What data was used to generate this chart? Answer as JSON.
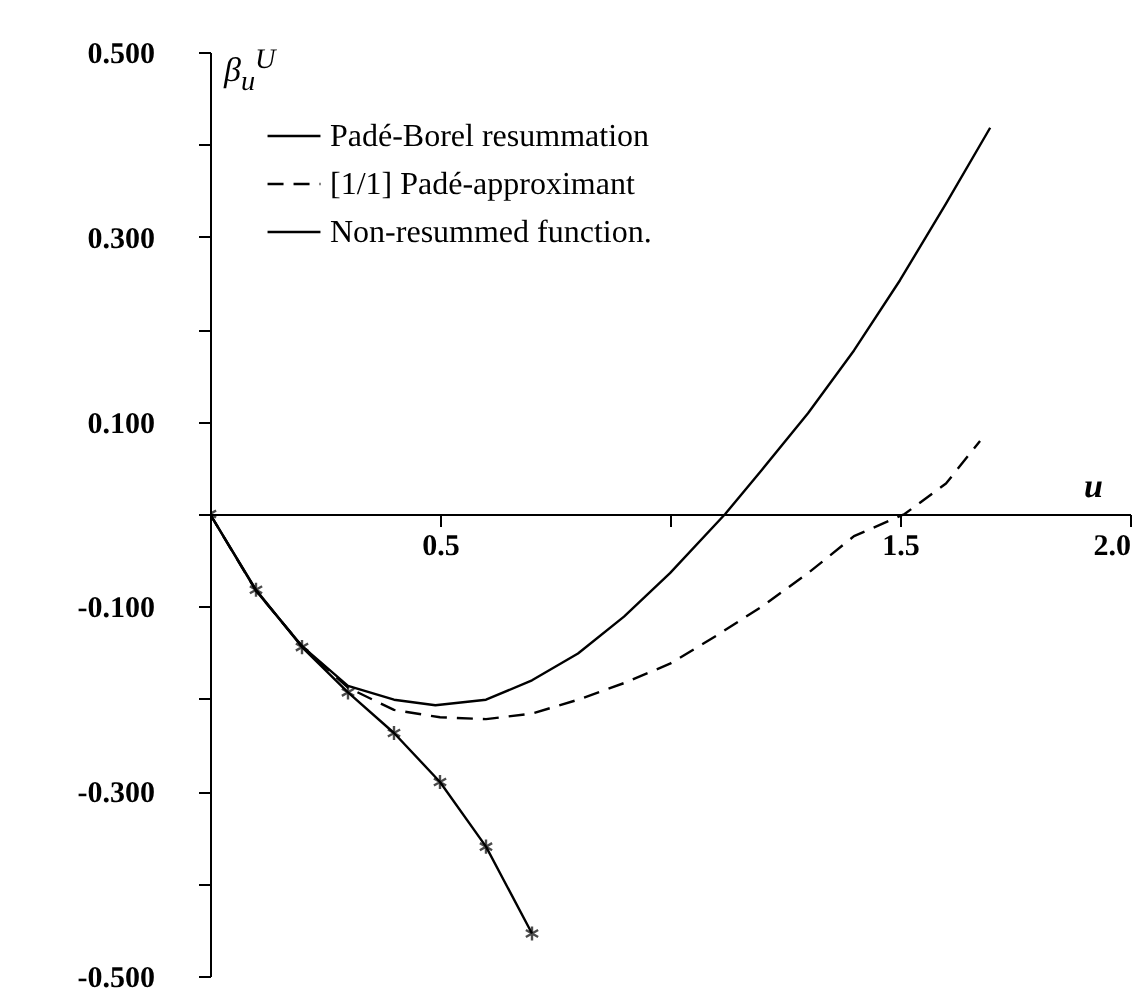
{
  "chart_data": {
    "type": "line",
    "xlabel": "u",
    "ylabel": "β$_{u}$$^{U}$",
    "xlim": [
      0,
      2.0
    ],
    "ylim": [
      -0.5,
      0.5
    ],
    "xticks": [
      {
        "value": 0,
        "label": null
      },
      {
        "value": 0.5,
        "label": "0.5"
      },
      {
        "value": 1.0,
        "label": null
      },
      {
        "value": 1.5,
        "label": "1.5"
      },
      {
        "value": 2.0,
        "label": "2.0"
      }
    ],
    "yticks": [
      {
        "value": 0.5,
        "label": "0.500"
      },
      {
        "value": 0.4,
        "label": null
      },
      {
        "value": 0.3,
        "label": "0.300"
      },
      {
        "value": 0.2,
        "label": null
      },
      {
        "value": 0.1,
        "label": "0.100"
      },
      {
        "value": 0,
        "label": null
      },
      {
        "value": -0.1,
        "label": "-0.100"
      },
      {
        "value": -0.2,
        "label": null
      },
      {
        "value": -0.3,
        "label": "-0.300"
      },
      {
        "value": -0.4,
        "label": null
      },
      {
        "value": -0.5,
        "label": "-0.500"
      }
    ],
    "grid": false,
    "legend": "top left",
    "series": [
      {
        "name": "Padé-Borel resummation",
        "color": "#000000",
        "line_style": "solid",
        "marker": "none",
        "x": [
          0,
          0.1,
          0.2,
          0.3,
          0.4,
          0.49,
          0.6,
          0.7,
          0.8,
          0.9,
          1.0,
          1.12,
          1.2,
          1.3,
          1.4,
          1.5,
          1.6,
          1.696
        ],
        "values": [
          0,
          -0.083,
          -0.143,
          -0.186,
          -0.201,
          -0.207,
          -0.201,
          -0.18,
          -0.151,
          -0.111,
          -0.064,
          0,
          0.048,
          0.109,
          0.177,
          0.253,
          0.336,
          0.418
        ]
      },
      {
        "name": "[1/1] Padé-approximant",
        "color": "#000000",
        "line_style": "dashed",
        "marker": "none",
        "x": [
          0,
          0.1,
          0.2,
          0.3,
          0.4,
          0.5,
          0.6,
          0.7,
          0.8,
          0.9,
          1.0,
          1.1,
          1.2,
          1.3,
          1.4,
          1.51,
          1.6,
          1.674
        ],
        "values": [
          0,
          -0.083,
          -0.143,
          -0.188,
          -0.212,
          -0.22,
          -0.222,
          -0.216,
          -0.201,
          -0.183,
          -0.162,
          -0.132,
          -0.1,
          -0.064,
          -0.024,
          0,
          0.033,
          0.079
        ]
      },
      {
        "name": "Non-resummed function.",
        "color": "#000000",
        "line_style": "solid",
        "marker": "cross",
        "x": [
          0,
          0.1,
          0.2,
          0.3,
          0.4,
          0.5,
          0.6,
          0.7
        ],
        "values": [
          0,
          -0.082,
          -0.144,
          -0.193,
          -0.237,
          -0.29,
          -0.36,
          -0.454
        ]
      }
    ]
  }
}
